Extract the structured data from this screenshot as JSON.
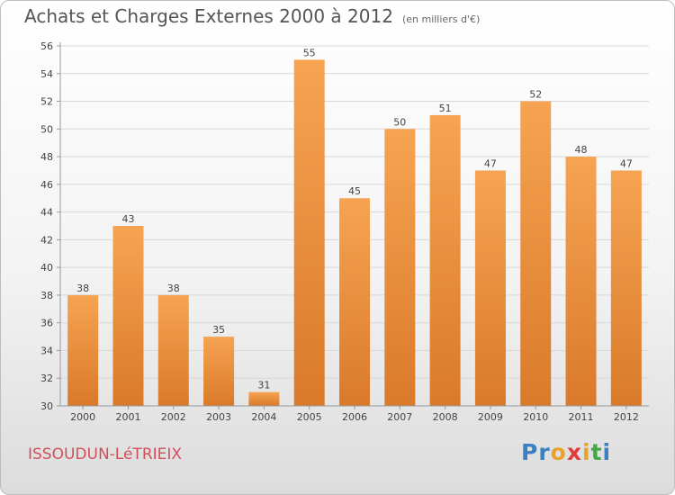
{
  "title": "Achats et Charges Externes 2000 à 2012",
  "subtitle": "(en milliers d'€)",
  "commune": "ISSOUDUN-LéTRIEIX",
  "logo": {
    "letters": [
      "P",
      "r",
      "o",
      "x",
      "i",
      "t",
      "i"
    ],
    "colors": [
      "#3b7fc4",
      "#3b7fc4",
      "#e8a32a",
      "#e23b3b",
      "#e8a32a",
      "#45a845",
      "#3b7fc4"
    ]
  },
  "colors": {
    "bar_light": "#f6a452",
    "bar_dark": "#d97a2a",
    "grid": "#d7d7d7",
    "axis": "#999999",
    "text": "#444444"
  },
  "chart_data": {
    "type": "bar",
    "title": "Achats et Charges Externes 2000 à 2012",
    "subtitle": "(en milliers d'€)",
    "categories": [
      "2000",
      "2001",
      "2002",
      "2003",
      "2004",
      "2005",
      "2006",
      "2007",
      "2008",
      "2009",
      "2010",
      "2011",
      "2012"
    ],
    "values": [
      38,
      43,
      38,
      35,
      31,
      55,
      45,
      50,
      51,
      47,
      52,
      48,
      47
    ],
    "data_labels": [
      "38",
      "43",
      "38",
      "35",
      "31",
      "55",
      "45",
      "50",
      "51",
      "47",
      "52",
      "48",
      "47"
    ],
    "ylim": [
      30,
      56
    ],
    "yticks": [
      30,
      32,
      34,
      36,
      38,
      40,
      42,
      44,
      46,
      48,
      50,
      52,
      54,
      56
    ],
    "ytick_labels": [
      "30",
      "32",
      "34",
      "36",
      "38",
      "40",
      "42",
      "44",
      "46",
      "48",
      "50",
      "52",
      "54",
      "56"
    ],
    "grid": true
  }
}
